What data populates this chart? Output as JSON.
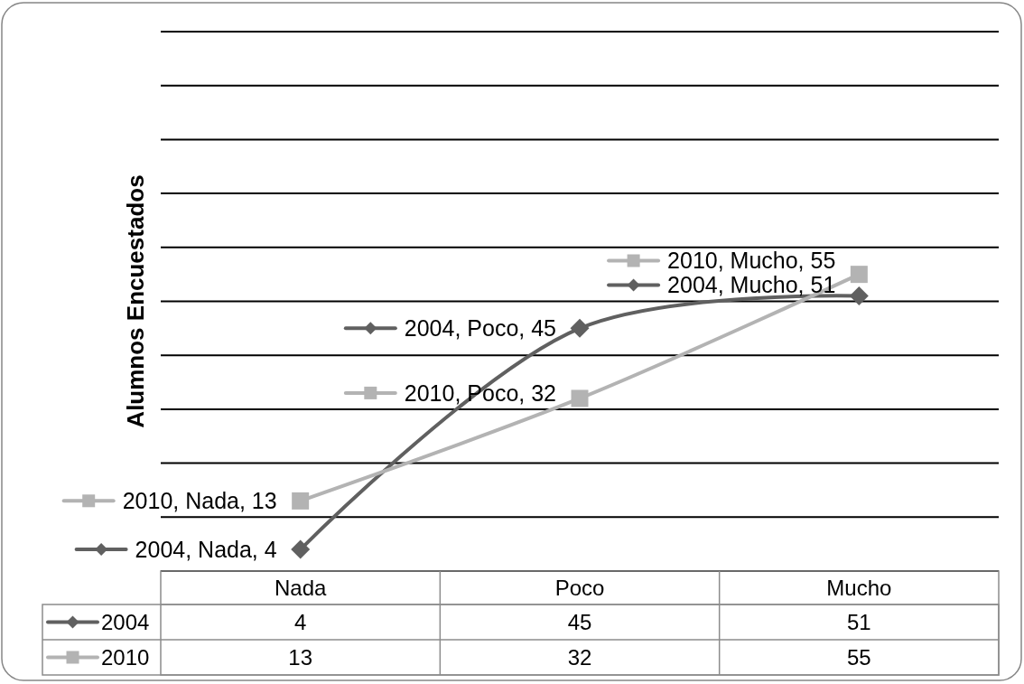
{
  "chart_data": {
    "type": "line",
    "ylabel": "Alumnos Encuestados",
    "categories": [
      "Nada",
      "Poco",
      "Mucho"
    ],
    "series": [
      {
        "name": "2004",
        "color": "#606060",
        "marker": "diamond",
        "values": [
          4,
          45,
          51
        ]
      },
      {
        "name": "2010",
        "color": "#b3b3b3",
        "marker": "square",
        "values": [
          13,
          32,
          55
        ]
      }
    ],
    "annotations": [
      {
        "text": "2004, Nada, 4",
        "x": "Nada",
        "y": 4
      },
      {
        "text": "2004, Poco, 45",
        "x": "Poco",
        "y": 45
      },
      {
        "text": "2004, Mucho, 51",
        "x": "Mucho",
        "y": 51
      },
      {
        "text": "2010, Nada, 13",
        "x": "Nada",
        "y": 13
      },
      {
        "text": "2010, Poco, 32",
        "x": "Poco",
        "y": 32
      },
      {
        "text": "2010, Mucho, 55",
        "x": "Mucho",
        "y": 55
      }
    ],
    "ylim": [
      0,
      100
    ],
    "yticks": [
      {
        "value": 0,
        "label": null
      },
      {
        "value": 10,
        "label": null
      },
      {
        "value": 20,
        "label": null
      },
      {
        "value": 30,
        "label": null
      },
      {
        "value": 40,
        "label": null
      },
      {
        "value": 50,
        "label": null
      },
      {
        "value": 60,
        "label": null
      },
      {
        "value": 70,
        "label": null
      },
      {
        "value": 80,
        "label": null
      },
      {
        "value": 90,
        "label": null
      },
      {
        "value": 100,
        "label": null
      }
    ],
    "grid": "y",
    "tick_labels": "x",
    "data_labels": true,
    "legend": "bottom left"
  }
}
